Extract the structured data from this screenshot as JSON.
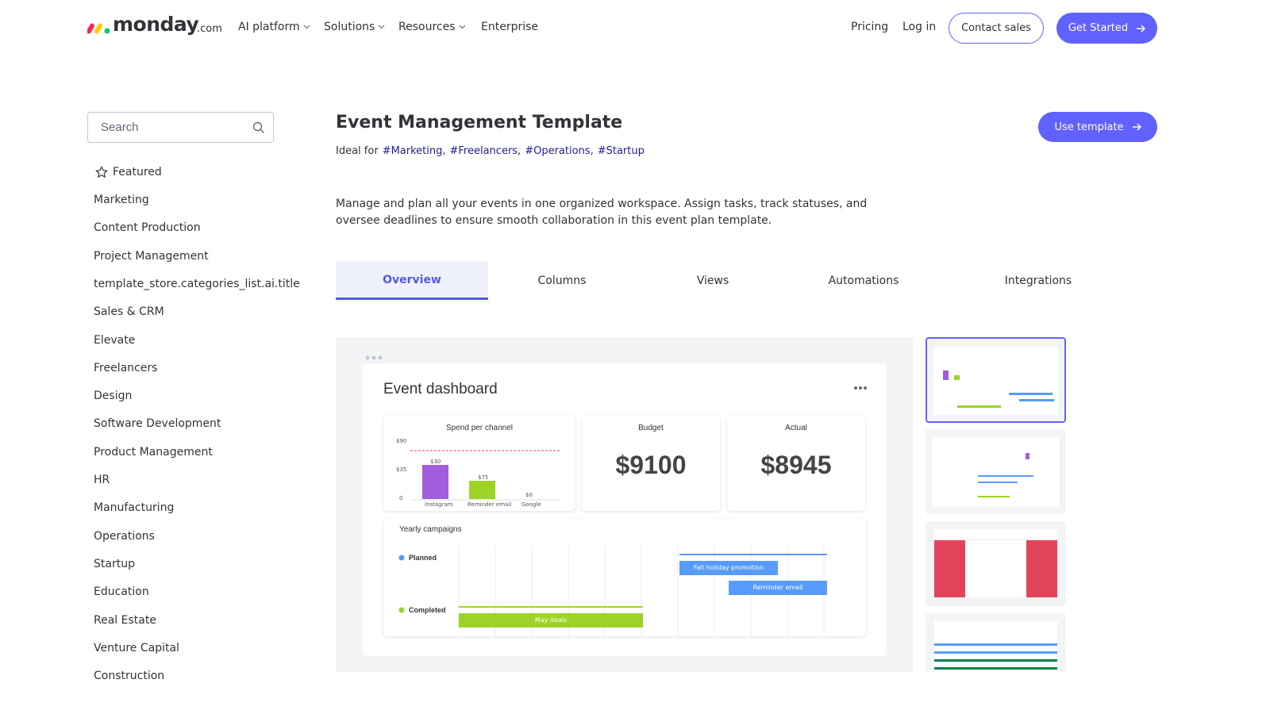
{
  "header": {
    "logo": {
      "name": "monday",
      "suffix": ".com"
    },
    "nav": [
      "AI platform",
      "Solutions",
      "Resources",
      "Enterprise"
    ],
    "pricing": "Pricing",
    "login": "Log in",
    "contact": "Contact sales",
    "cta": "Get Started"
  },
  "sidebar": {
    "search": "Search",
    "featured": "Featured",
    "categories": [
      "Marketing",
      "Content Production",
      "Project Management",
      "template_store.categories_list.ai.title",
      "Sales & CRM",
      "Elevate",
      "Freelancers",
      "Design",
      "Software Development",
      "Product Management",
      "HR",
      "Manufacturing",
      "Operations",
      "Startup",
      "Education",
      "Real Estate",
      "Venture Capital",
      "Construction"
    ]
  },
  "template": {
    "title": "Event Management Template",
    "ideal_for": "Ideal for",
    "tags": [
      "#Marketing,",
      "#Freelancers,",
      "#Operations,",
      "#Startup"
    ],
    "use_button": "Use template",
    "description": "Manage and plan all your events in one organized workspace. Assign tasks, track statuses, and oversee deadlines to ensure smooth collaboration in this event plan template.",
    "tabs": [
      "Overview",
      "Columns",
      "Views",
      "Automations",
      "Integrations"
    ]
  },
  "preview": {
    "title": "Event dashboard",
    "spend": {
      "title": "Spend per channel",
      "yticks": [
        "$90",
        "$35",
        "0"
      ],
      "bars": [
        {
          "label": "Instagram",
          "value_label": "$30"
        },
        {
          "label": "Reminder email",
          "value_label": "$75"
        },
        {
          "label": "Google",
          "value_label": "$0"
        }
      ]
    },
    "budget": {
      "label": "Budget",
      "value": "$9100"
    },
    "actual": {
      "label": "Actual",
      "value": "$8945"
    },
    "campaigns": {
      "title": "Yearly campaigns",
      "groups": [
        "Planned",
        "Completed"
      ],
      "items": [
        "Fall holiday promotion",
        "Reminder email",
        "May deals"
      ]
    }
  }
}
